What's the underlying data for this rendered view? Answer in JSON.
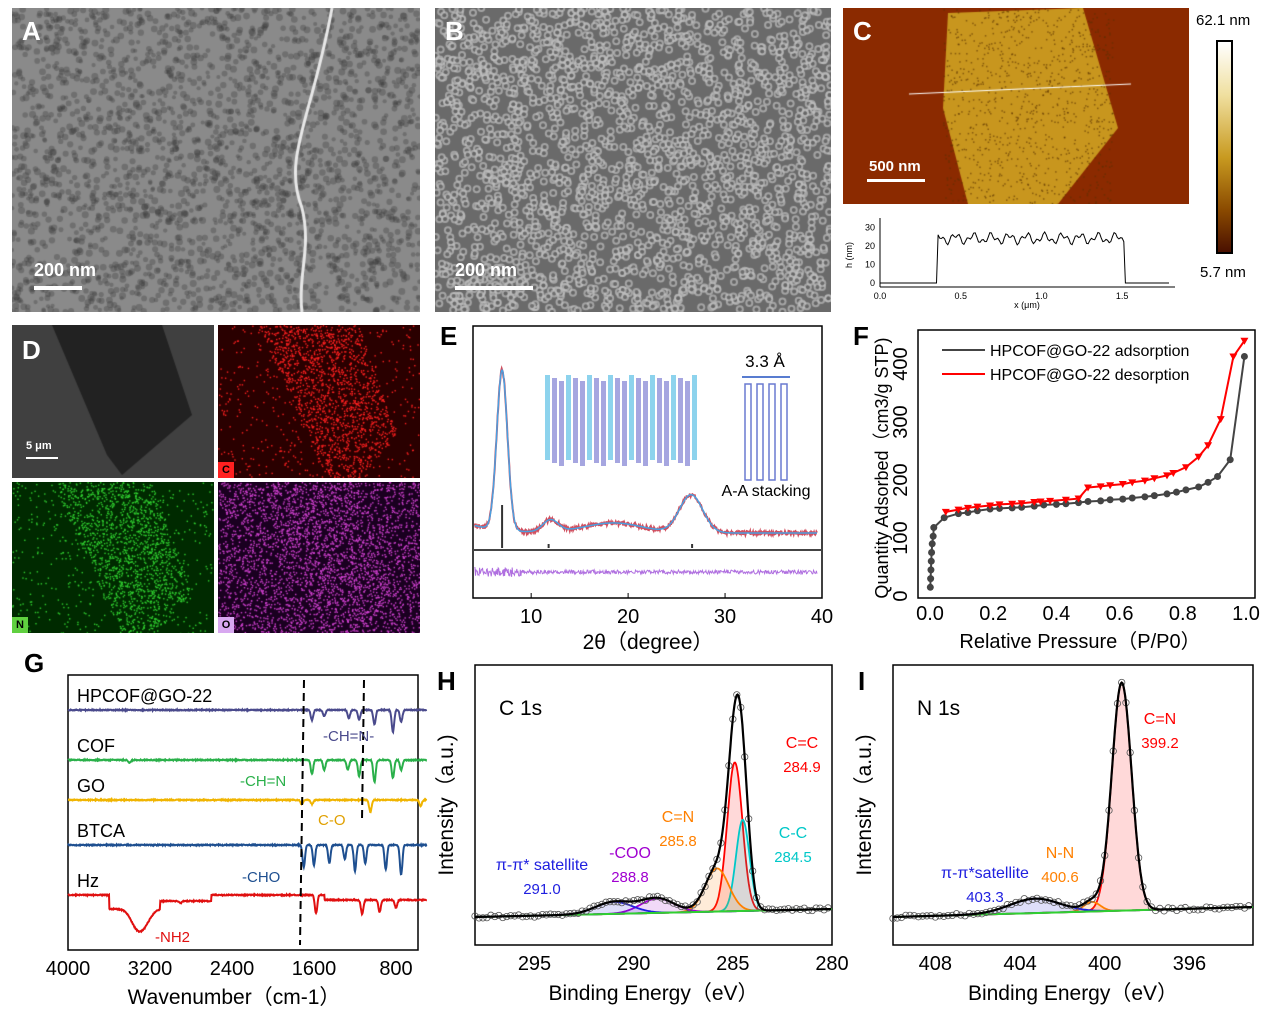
{
  "panels": {
    "A": {
      "label": "A",
      "scale": "200 nm"
    },
    "B": {
      "label": "B",
      "scale": "200 nm"
    },
    "C": {
      "label": "C",
      "scale": "500 nm",
      "cbar_max": "62.1 nm",
      "cbar_min": "5.7 nm"
    },
    "D": {
      "label": "D",
      "scale": "5 μm",
      "tiles": [
        "C",
        "N",
        "O"
      ]
    },
    "E": {
      "label": "E",
      "stack_label": "A-A stacking",
      "spacing": "3.3 Å"
    },
    "F": {
      "label": "F"
    },
    "G": {
      "label": "G"
    },
    "H": {
      "label": "H"
    },
    "I": {
      "label": "I"
    }
  },
  "colors": {
    "eds_C": "#ff2020",
    "eds_N": "#30d030",
    "eds_O": "#d040d0",
    "afm": "#8b2a00"
  },
  "chart_data": [
    {
      "id": "C-profile",
      "type": "line",
      "xlabel": "x (μm)",
      "ylabel": "h (nm)",
      "xlim": [
        0,
        1.8
      ],
      "ylim": [
        0,
        35
      ],
      "xticks": [
        "0.0",
        "0.5",
        "1.0",
        "1.5"
      ],
      "yticks": [
        "0",
        "10",
        "20",
        "30"
      ],
      "step": {
        "start": 0.36,
        "end": 1.52,
        "height": 24
      }
    },
    {
      "id": "E",
      "type": "line",
      "xlabel": "2θ（degree）",
      "xlim": [
        4,
        40
      ],
      "xticks": [
        "10",
        "20",
        "30",
        "40"
      ],
      "peaks": [
        {
          "x": 7.0,
          "h": 160,
          "w": 0.55
        },
        {
          "x": 12,
          "h": 12,
          "w": 0.8
        },
        {
          "x": 18.5,
          "h": 10,
          "w": 3
        },
        {
          "x": 26.5,
          "h": 38,
          "w": 1.2
        }
      ],
      "simulated_peaks": [
        7.0,
        11.8,
        26.6
      ]
    },
    {
      "id": "F",
      "type": "line",
      "xlabel": "Relative Pressure（P/P0）",
      "ylabel": "Quantity Adsorbed（cm3/g STP)",
      "xlim": [
        0,
        1.0
      ],
      "ylim": [
        0,
        450
      ],
      "xticks": [
        "0.0",
        "0.2",
        "0.4",
        "0.6",
        "0.8",
        "1.0"
      ],
      "yticks": [
        "0",
        "100",
        "200",
        "300",
        "400"
      ],
      "legend": "top-left",
      "series": [
        {
          "name": "HPCOF@GO-22 adsorption",
          "color": "#444444",
          "x": [
            0.001,
            0.002,
            0.003,
            0.004,
            0.005,
            0.007,
            0.01,
            0.012,
            0.045,
            0.09,
            0.12,
            0.15,
            0.19,
            0.22,
            0.26,
            0.29,
            0.33,
            0.36,
            0.4,
            0.43,
            0.47,
            0.5,
            0.54,
            0.57,
            0.61,
            0.64,
            0.68,
            0.71,
            0.75,
            0.78,
            0.81,
            0.85,
            0.88,
            0.91,
            0.95,
            0.995
          ],
          "y": [
            15,
            30,
            45,
            60,
            75,
            90,
            103,
            118,
            135,
            142,
            144,
            147,
            150,
            151,
            152,
            153,
            155,
            157,
            158,
            159,
            161,
            163,
            164,
            166,
            167,
            169,
            171,
            173,
            176,
            179,
            183,
            188,
            196,
            206,
            235,
            413
          ]
        },
        {
          "name": "HPCOF@GO-22 desorption",
          "color": "#ff0000",
          "x": [
            0.995,
            0.96,
            0.92,
            0.88,
            0.85,
            0.81,
            0.77,
            0.75,
            0.71,
            0.68,
            0.64,
            0.61,
            0.57,
            0.54,
            0.5,
            0.47,
            0.43,
            0.38,
            0.35,
            0.33,
            0.29,
            0.26,
            0.22,
            0.19,
            0.15,
            0.12,
            0.09,
            0.05
          ],
          "y": [
            440,
            413,
            305,
            260,
            240,
            222,
            212,
            208,
            203,
            199,
            196,
            193,
            191,
            189,
            187,
            168,
            166,
            164,
            163,
            162,
            160,
            159,
            158,
            156,
            154,
            152,
            149,
            145
          ]
        }
      ]
    },
    {
      "id": "G",
      "type": "line",
      "xlabel": "Wavenumber（cm-1）",
      "xlim": [
        4000,
        500
      ],
      "xticks": [
        "4000",
        "3200",
        "2400",
        "1600",
        "800"
      ],
      "series": [
        {
          "name": "HPCOF@GO-22",
          "color": "#4a4a8c",
          "dips": [
            [
              1620,
              10
            ],
            [
              1500,
              6
            ],
            [
              1260,
              8
            ],
            [
              1160,
              10
            ],
            [
              1010,
              14
            ],
            [
              830,
              22
            ],
            [
              750,
              12
            ]
          ]
        },
        {
          "name": "COF",
          "color": "#2ab04a",
          "dips": [
            [
              3400,
              3
            ],
            [
              1620,
              14
            ],
            [
              1500,
              10
            ],
            [
              1270,
              10
            ],
            [
              1160,
              16
            ],
            [
              1010,
              22
            ],
            [
              830,
              18
            ],
            [
              750,
              10
            ]
          ]
        },
        {
          "name": "GO",
          "color": "#f0b400",
          "dips": [
            [
              1720,
              4
            ],
            [
              1620,
              4
            ],
            [
              1050,
              12
            ],
            [
              560,
              6
            ]
          ]
        },
        {
          "name": "BTCA",
          "color": "#1e4f90",
          "dips": [
            [
              1700,
              22
            ],
            [
              1600,
              20
            ],
            [
              1450,
              18
            ],
            [
              1300,
              14
            ],
            [
              1200,
              26
            ],
            [
              1100,
              18
            ],
            [
              900,
              24
            ],
            [
              750,
              30
            ]
          ]
        },
        {
          "name": "Hz",
          "color": "#e01010",
          "dips": [
            [
              3330,
              16
            ],
            [
              3250,
              12
            ],
            [
              2900,
              2
            ],
            [
              1580,
              18
            ],
            [
              1130,
              14
            ],
            [
              960,
              12
            ],
            [
              800,
              8
            ]
          ]
        }
      ],
      "annotations": [
        "-CH=N-",
        "-CH=N",
        "C-O",
        "-CHO",
        "-NH2"
      ]
    },
    {
      "id": "H",
      "type": "line",
      "title": "C 1s",
      "xlabel": "Binding Energy（eV）",
      "ylabel": "Intensity（a.u.)",
      "xlim": [
        298,
        280
      ],
      "xticks": [
        "295",
        "290",
        "285",
        "280"
      ],
      "components": [
        {
          "name": "C=C",
          "pos": "284.9",
          "center": 284.9,
          "height": 0.62,
          "fwhm": 0.9,
          "color": "#ff0000"
        },
        {
          "name": "C-C",
          "pos": "284.5",
          "center": 284.5,
          "height": 0.38,
          "fwhm": 0.8,
          "color": "#00c8c8"
        },
        {
          "name": "C=N",
          "pos": "285.8",
          "center": 285.8,
          "height": 0.18,
          "fwhm": 1.4,
          "color": "#ff8000"
        },
        {
          "name": "-COO",
          "pos": "288.8",
          "center": 288.8,
          "height": 0.06,
          "fwhm": 2.0,
          "color": "#a000d0"
        },
        {
          "name": "π-π* satellite",
          "pos": "291.0",
          "center": 291.0,
          "height": 0.05,
          "fwhm": 2.2,
          "color": "#2020e0"
        }
      ]
    },
    {
      "id": "I",
      "type": "line",
      "title": "N 1s",
      "xlabel": "Binding Energy（eV）",
      "ylabel": "Intensity（a.u.)",
      "xlim": [
        410,
        393
      ],
      "xticks": [
        "408",
        "404",
        "400",
        "396"
      ],
      "components": [
        {
          "name": "C=N",
          "pos": "399.2",
          "center": 399.2,
          "height": 0.95,
          "fwhm": 1.1,
          "color": "#ff0000"
        },
        {
          "name": "N-N",
          "pos": "400.6",
          "center": 400.6,
          "height": 0.04,
          "fwhm": 0.9,
          "color": "#ff8000"
        },
        {
          "name": "π-π*satellite",
          "pos": "403.3",
          "center": 403.3,
          "height": 0.06,
          "fwhm": 2.8,
          "color": "#2020e0"
        }
      ]
    }
  ]
}
